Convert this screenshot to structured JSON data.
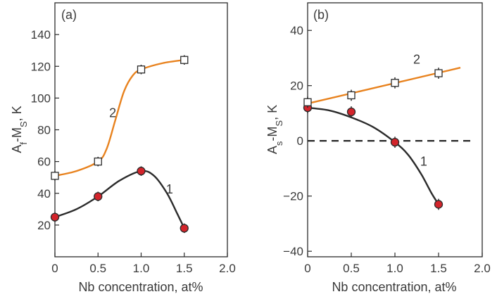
{
  "colors": {
    "frame": "#2b2b2b",
    "text": "#3a3a3a",
    "orange": "#e8821e",
    "black_line": "#2b2b2b",
    "red_marker": "#d3242b",
    "white_marker": "#ffffff"
  },
  "chart_data": [
    {
      "panel": "(a)",
      "type": "line",
      "xlabel": "Nb concentration, at%",
      "ylabel": "Af-MS, K",
      "xlim": [
        0,
        2.0
      ],
      "ylim": [
        0,
        160
      ],
      "xticks": [
        "0",
        "0.5",
        "1.0",
        "1.5",
        "2.0"
      ],
      "xtick_values": [
        0,
        0.5,
        1.0,
        1.5,
        2.0
      ],
      "yticks": [
        "20",
        "40",
        "60",
        "80",
        "100",
        "120",
        "140"
      ],
      "ytick_values": [
        20,
        40,
        60,
        80,
        100,
        120,
        140
      ],
      "series": [
        {
          "name": "1",
          "marker": "filled-circle",
          "color": "#2b2b2b",
          "x": [
            0,
            0.5,
            1.0,
            1.5
          ],
          "values": [
            25,
            38,
            54,
            18
          ],
          "error": 3,
          "curve": [
            [
              0,
              25
            ],
            [
              0.25,
              30
            ],
            [
              0.5,
              38
            ],
            [
              0.75,
              48
            ],
            [
              1.0,
              54
            ],
            [
              1.15,
              51
            ],
            [
              1.3,
              40
            ],
            [
              1.42,
              27
            ],
            [
              1.5,
              18
            ]
          ],
          "label_at": [
            1.33,
            40
          ]
        },
        {
          "name": "2",
          "marker": "open-square",
          "color": "#e8821e",
          "x": [
            0,
            0.5,
            1.0,
            1.5
          ],
          "values": [
            51,
            60,
            118,
            124
          ],
          "error": 3,
          "curve": [
            [
              0,
              51
            ],
            [
              0.25,
              54
            ],
            [
              0.5,
              60
            ],
            [
              0.6,
              68
            ],
            [
              0.7,
              86
            ],
            [
              0.8,
              104
            ],
            [
              0.9,
              114
            ],
            [
              1.0,
              118
            ],
            [
              1.25,
              122
            ],
            [
              1.5,
              124
            ]
          ],
          "label_at": [
            0.67,
            88
          ]
        }
      ]
    },
    {
      "panel": "(b)",
      "type": "line",
      "xlabel": "Nb concentration, at%",
      "ylabel": "As-MS, K",
      "xlim": [
        0,
        2.0
      ],
      "ylim": [
        -42,
        50
      ],
      "xticks": [
        "0",
        "0.5",
        "1.0",
        "1.5",
        "2.0"
      ],
      "xtick_values": [
        0,
        0.5,
        1.0,
        1.5,
        2.0
      ],
      "yticks": [
        "−40",
        "−20",
        "0",
        "20",
        "40"
      ],
      "ytick_values": [
        -40,
        -20,
        0,
        20,
        40
      ],
      "reference_line": 0,
      "series": [
        {
          "name": "1",
          "marker": "filled-circle",
          "color": "#2b2b2b",
          "x": [
            0,
            0.5,
            1.0,
            1.5
          ],
          "values": [
            12,
            10.5,
            -0.5,
            -23
          ],
          "error": 2,
          "curve": [
            [
              0,
              12
            ],
            [
              0.25,
              11
            ],
            [
              0.5,
              8.5
            ],
            [
              0.75,
              5
            ],
            [
              1.0,
              -0.5
            ],
            [
              1.15,
              -5
            ],
            [
              1.3,
              -12
            ],
            [
              1.42,
              -19
            ],
            [
              1.5,
              -23
            ]
          ],
          "label_at": [
            1.33,
            -9
          ]
        },
        {
          "name": "2",
          "marker": "open-square",
          "color": "#e8821e",
          "x": [
            0,
            0.5,
            1.0,
            1.5
          ],
          "values": [
            14,
            16.5,
            21,
            24.5
          ],
          "error": 2,
          "curve": [
            [
              0,
              13.5
            ],
            [
              1.75,
              26.5
            ]
          ],
          "label_at": [
            1.25,
            28
          ]
        }
      ]
    }
  ]
}
